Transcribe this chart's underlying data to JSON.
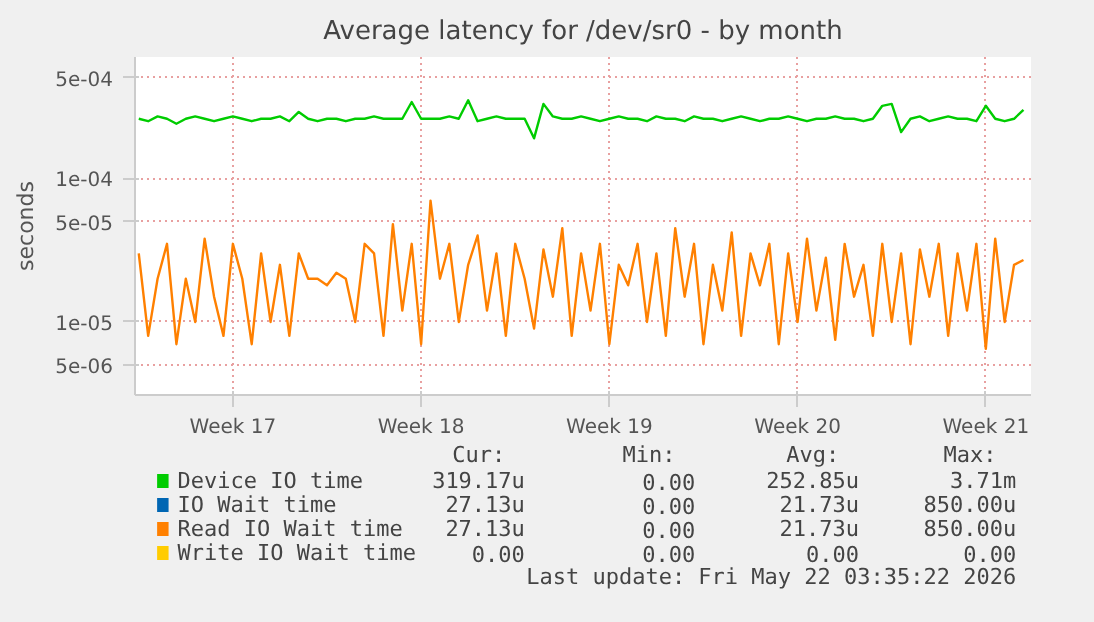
{
  "chart_data": {
    "type": "line",
    "title": "Average latency for /dev/sr0 - by month",
    "ylabel": "seconds",
    "log": "y",
    "categories": [
      null,
      null,
      null,
      null,
      null,
      null,
      null,
      null,
      null,
      null,
      "Week 17",
      null,
      null,
      null,
      null,
      null,
      null,
      null,
      null,
      null,
      null,
      null,
      null,
      null,
      null,
      null,
      null,
      null,
      null,
      null,
      "Week 18",
      null,
      null,
      null,
      null,
      null,
      null,
      null,
      null,
      null,
      null,
      null,
      null,
      null,
      null,
      null,
      null,
      null,
      null,
      null,
      "Week 19",
      null,
      null,
      null,
      null,
      null,
      null,
      null,
      null,
      null,
      null,
      null,
      null,
      null,
      null,
      null,
      null,
      null,
      null,
      null,
      "Week 20",
      null,
      null,
      null,
      null,
      null,
      null,
      null,
      null,
      null,
      null,
      null,
      null,
      null,
      null,
      null,
      null,
      null,
      null,
      null,
      "Week 21",
      null,
      null,
      null,
      null
    ],
    "ylim": [
      3.1e-06,
      0.0007
    ],
    "yticks": [
      {
        "value": 5e-06,
        "label": "5e-06"
      },
      {
        "value": 1e-05,
        "label": "1e-05"
      },
      {
        "value": 5e-05,
        "label": "5e-05"
      },
      {
        "value": 0.0001,
        "label": "1e-04"
      },
      {
        "value": 0.0005,
        "label": "5e-04"
      }
    ],
    "grid": true,
    "legend": "bottom",
    "series": [
      {
        "name": "Device IO time",
        "color": "#00cc00",
        "values": [
          0.00026,
          0.00025,
          0.00027,
          0.00026,
          0.00024,
          0.00026,
          0.00027,
          0.00026,
          0.00025,
          0.00026,
          0.00027,
          0.00026,
          0.00025,
          0.00026,
          0.00026,
          0.00027,
          0.00025,
          0.00029,
          0.00026,
          0.00025,
          0.00026,
          0.00026,
          0.00025,
          0.00026,
          0.00026,
          0.00027,
          0.00026,
          0.00026,
          0.00026,
          0.00034,
          0.00026,
          0.00026,
          0.00026,
          0.00027,
          0.00026,
          0.00035,
          0.00025,
          0.00026,
          0.00027,
          0.00026,
          0.00026,
          0.00026,
          0.00019,
          0.00033,
          0.00027,
          0.00026,
          0.00026,
          0.00027,
          0.00026,
          0.00025,
          0.00026,
          0.00027,
          0.00026,
          0.00026,
          0.00025,
          0.00027,
          0.00026,
          0.00026,
          0.00025,
          0.00027,
          0.00026,
          0.00026,
          0.00025,
          0.00026,
          0.00027,
          0.00026,
          0.00025,
          0.00026,
          0.00026,
          0.00027,
          0.00026,
          0.00025,
          0.00026,
          0.00026,
          0.00027,
          0.00026,
          0.00026,
          0.00025,
          0.00026,
          0.00032,
          0.00033,
          0.00021,
          0.00026,
          0.00027,
          0.00025,
          0.00026,
          0.00027,
          0.00026,
          0.00026,
          0.00025,
          0.00032,
          0.00026,
          0.00025,
          0.00026,
          0.0003
        ]
      },
      {
        "name": "IO Wait time",
        "color": "#0066b3",
        "values": [
          null,
          null,
          null,
          null,
          null,
          null,
          null,
          null,
          null,
          null,
          null,
          null,
          null,
          null,
          null,
          null,
          null,
          null,
          null,
          null,
          null,
          null,
          null,
          null,
          null,
          null,
          null,
          null,
          null,
          null,
          null,
          null,
          null,
          null,
          null,
          null,
          null,
          null,
          null,
          null,
          null,
          null,
          null,
          null,
          null,
          null,
          null,
          null,
          null,
          null,
          null,
          null,
          null,
          null,
          null,
          null,
          null,
          null,
          null,
          null,
          null,
          null,
          null,
          null,
          null,
          null,
          null,
          null,
          null,
          null,
          null,
          null,
          null,
          null,
          null,
          null,
          null,
          null,
          null,
          null,
          null,
          null,
          null,
          null,
          null,
          null,
          null,
          null,
          null,
          null,
          null,
          null,
          null,
          null,
          null
        ]
      },
      {
        "name": "Read IO Wait time",
        "color": "#ff8000",
        "values": [
          3e-05,
          8e-06,
          2e-05,
          3.5e-05,
          7e-06,
          2e-05,
          1e-05,
          3.8e-05,
          1.5e-05,
          8e-06,
          3.5e-05,
          2e-05,
          7e-06,
          3e-05,
          1e-05,
          2.5e-05,
          8e-06,
          3e-05,
          2e-05,
          2e-05,
          1.8e-05,
          2.2e-05,
          2e-05,
          1e-05,
          3.5e-05,
          3e-05,
          8e-06,
          4.8e-05,
          1.2e-05,
          3.5e-05,
          7e-06,
          7e-05,
          2e-05,
          3.5e-05,
          1e-05,
          2.5e-05,
          4e-05,
          1.2e-05,
          3e-05,
          8e-06,
          3.5e-05,
          2e-05,
          9e-06,
          3.2e-05,
          1.5e-05,
          4.5e-05,
          8e-06,
          3e-05,
          1.2e-05,
          3.5e-05,
          7e-06,
          2.5e-05,
          1.8e-05,
          3.5e-05,
          1e-05,
          3e-05,
          8e-06,
          4.5e-05,
          1.5e-05,
          3.5e-05,
          7e-06,
          2.5e-05,
          1.2e-05,
          4.2e-05,
          8e-06,
          3e-05,
          1.8e-05,
          3.5e-05,
          7e-06,
          3e-05,
          1e-05,
          3.8e-05,
          1.2e-05,
          2.8e-05,
          7.5e-06,
          3.5e-05,
          1.5e-05,
          2.5e-05,
          8e-06,
          3.5e-05,
          1e-05,
          3e-05,
          7e-06,
          3.2e-05,
          1.5e-05,
          3.5e-05,
          8e-06,
          3e-05,
          1.2e-05,
          3.5e-05,
          6.5e-06,
          3.8e-05,
          1e-05,
          2.5e-05,
          2.7e-05
        ]
      },
      {
        "name": "Write IO Wait time",
        "color": "#ffcc00",
        "values": [
          null,
          null,
          null,
          null,
          null,
          null,
          null,
          null,
          null,
          null,
          null,
          null,
          null,
          null,
          null,
          null,
          null,
          null,
          null,
          null,
          null,
          null,
          null,
          null,
          null,
          null,
          null,
          null,
          null,
          null,
          null,
          null,
          null,
          null,
          null,
          null,
          null,
          null,
          null,
          null,
          null,
          null,
          null,
          null,
          null,
          null,
          null,
          null,
          null,
          null,
          null,
          null,
          null,
          null,
          null,
          null,
          null,
          null,
          null,
          null,
          null,
          null,
          null,
          null,
          null,
          null,
          null,
          null,
          null,
          null,
          null,
          null,
          null,
          null,
          null,
          null,
          null,
          null,
          null,
          null,
          null,
          null,
          null,
          null,
          null,
          null,
          null,
          null,
          null,
          null,
          null,
          null,
          null,
          null,
          null
        ]
      }
    ],
    "annotations": [
      "Cur:",
      "Min:",
      "Avg:",
      "Max:",
      "319.17u",
      "0.00",
      "252.85u",
      "3.71m",
      "27.13u",
      "0.00",
      "21.73u",
      "850.00u",
      "27.13u",
      "0.00",
      "21.73u",
      "850.00u",
      "0.00",
      "0.00",
      "0.00",
      "0.00",
      "Last update: Fri May 22 03:35:22 2026"
    ]
  }
}
